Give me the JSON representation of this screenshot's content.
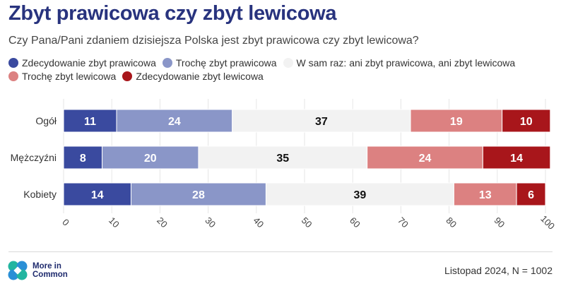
{
  "header": {
    "title": "Zbyt prawicowa czy zbyt lewicowa",
    "subtitle": "Czy Pana/Pani zdaniem dzisiejsza Polska jest zbyt prawicowa czy zbyt lewicowa?"
  },
  "chart_data": {
    "type": "bar",
    "orientation": "horizontal",
    "stacked": true,
    "categories": [
      "Ogół",
      "Mężczyźni",
      "Kobiety"
    ],
    "series": [
      {
        "name": "Zdecydowanie zbyt prawicowa",
        "color": "#3a4a9f",
        "label_color": "#ffffff",
        "values": [
          11,
          8,
          14
        ]
      },
      {
        "name": "Trochę zbyt prawicowa",
        "color": "#8a96c8",
        "label_color": "#ffffff",
        "values": [
          24,
          20,
          28
        ]
      },
      {
        "name": "W sam raz: ani zbyt prawicowa, ani zbyt lewicowa",
        "color": "#f2f2f2",
        "label_color": "#111111",
        "values": [
          37,
          35,
          39
        ]
      },
      {
        "name": "Trochę zbyt lewicowa",
        "color": "#dc8181",
        "label_color": "#ffffff",
        "values": [
          19,
          24,
          13
        ]
      },
      {
        "name": "Zdecydowanie zbyt lewicowa",
        "color": "#a8161b",
        "label_color": "#ffffff",
        "values": [
          10,
          14,
          6
        ]
      }
    ],
    "xlim": [
      0,
      100
    ],
    "xticks": [
      0,
      10,
      20,
      30,
      40,
      50,
      60,
      70,
      80,
      90,
      100
    ],
    "grid": true,
    "legend_position": "top"
  },
  "footer": {
    "logo_line1": "More in",
    "logo_line2": "Common",
    "note": "Listopad 2024, N = 1002"
  }
}
